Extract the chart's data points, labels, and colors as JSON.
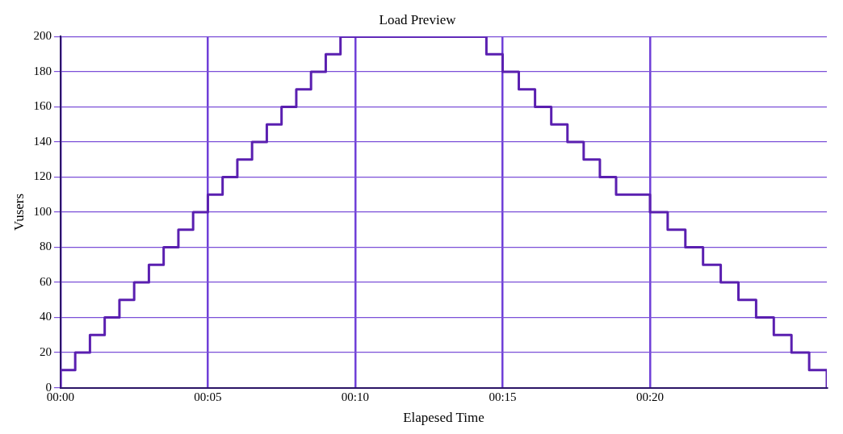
{
  "chart_data": {
    "type": "step",
    "title": "Load Preview",
    "xlabel": "Elapesed Time",
    "ylabel": "Vusers",
    "x": [
      0,
      0,
      0.5,
      1,
      1.5,
      2,
      2.5,
      3,
      3.5,
      4,
      4.5,
      5,
      5.5,
      6,
      6.5,
      7,
      7.5,
      8,
      8.5,
      9,
      9.5,
      14.45,
      15,
      15.55,
      16.1,
      16.65,
      17.2,
      17.75,
      18.3,
      18.85,
      20,
      20.6,
      21.2,
      21.8,
      22.4,
      23,
      23.6,
      24.2,
      24.8,
      25.4,
      26
    ],
    "series": [
      {
        "color": "#5a1fb0",
        "values": [
          0,
          10,
          20,
          30,
          40,
          50,
          60,
          70,
          80,
          90,
          100,
          110,
          120,
          130,
          140,
          150,
          160,
          170,
          180,
          190,
          200,
          190,
          180,
          170,
          160,
          150,
          140,
          130,
          120,
          110,
          100,
          90,
          80,
          70,
          60,
          50,
          40,
          30,
          20,
          10,
          0
        ]
      }
    ],
    "xlim": [
      0,
      26
    ],
    "xticks": [
      {
        "value": 0,
        "label": "00:00"
      },
      {
        "value": 5,
        "label": "00:05"
      },
      {
        "value": 10,
        "label": "00:10"
      },
      {
        "value": 15,
        "label": "00:15"
      },
      {
        "value": 20,
        "label": "00:20"
      }
    ],
    "ylim": [
      0,
      200
    ],
    "yticks": [
      0,
      20,
      40,
      60,
      80,
      100,
      120,
      140,
      160,
      180,
      200
    ],
    "grid": true,
    "legend": false,
    "marker": "none",
    "line_style": "solid"
  }
}
